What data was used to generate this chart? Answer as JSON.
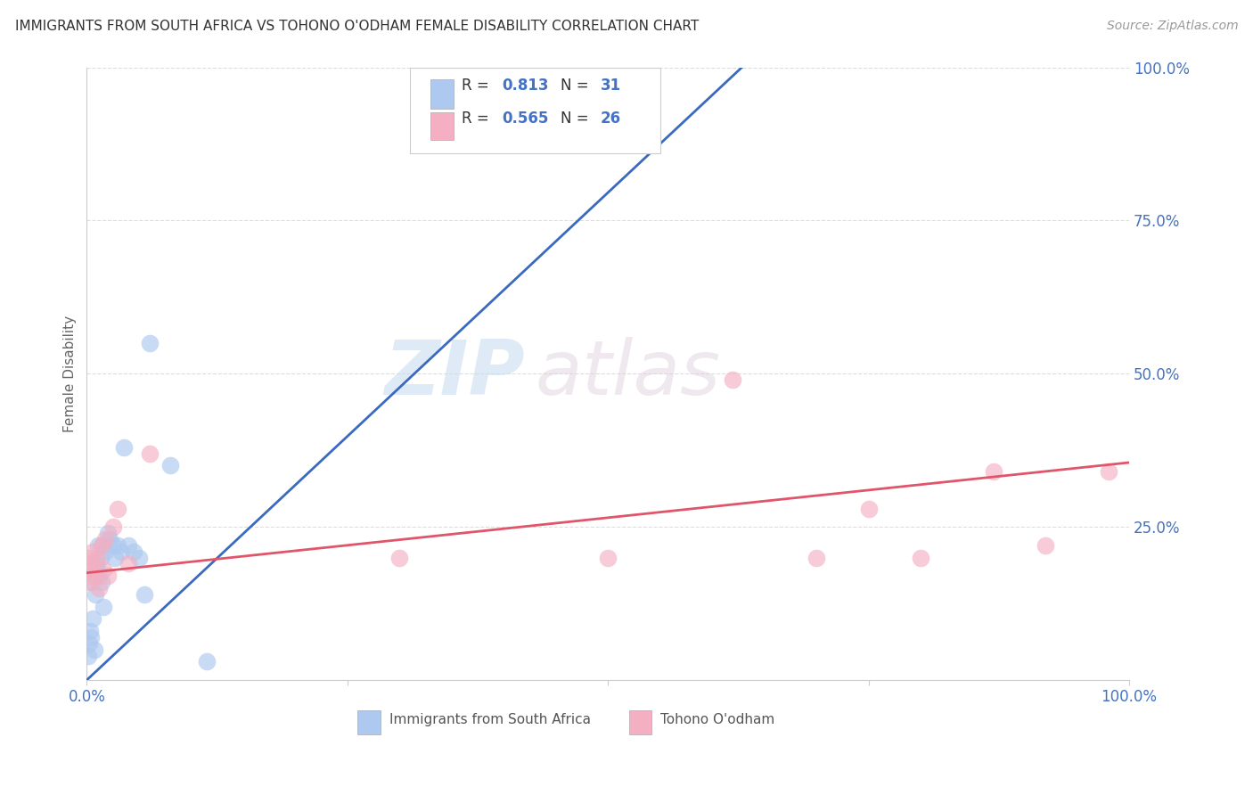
{
  "title": "IMMIGRANTS FROM SOUTH AFRICA VS TOHONO O'ODHAM FEMALE DISABILITY CORRELATION CHART",
  "source": "Source: ZipAtlas.com",
  "ylabel": "Female Disability",
  "blue_R": 0.813,
  "blue_N": 31,
  "pink_R": 0.565,
  "pink_N": 26,
  "blue_color": "#adc9ef",
  "pink_color": "#f4afc2",
  "blue_line_color": "#3a6abf",
  "pink_line_color": "#e0556a",
  "axis_label_color": "#4472c4",
  "blue_scatter_x": [
    0.001,
    0.002,
    0.003,
    0.004,
    0.005,
    0.006,
    0.007,
    0.008,
    0.009,
    0.01,
    0.011,
    0.012,
    0.013,
    0.014,
    0.015,
    0.016,
    0.018,
    0.02,
    0.022,
    0.025,
    0.027,
    0.03,
    0.033,
    0.036,
    0.04,
    0.045,
    0.05,
    0.055,
    0.06,
    0.08,
    0.115
  ],
  "blue_scatter_y": [
    0.04,
    0.06,
    0.08,
    0.07,
    0.16,
    0.1,
    0.05,
    0.14,
    0.19,
    0.18,
    0.22,
    0.17,
    0.2,
    0.16,
    0.22,
    0.12,
    0.21,
    0.24,
    0.23,
    0.22,
    0.2,
    0.22,
    0.21,
    0.38,
    0.22,
    0.21,
    0.2,
    0.14,
    0.55,
    0.35,
    0.03
  ],
  "pink_scatter_x": [
    0.001,
    0.002,
    0.003,
    0.004,
    0.005,
    0.006,
    0.008,
    0.01,
    0.012,
    0.014,
    0.016,
    0.018,
    0.02,
    0.025,
    0.03,
    0.04,
    0.06,
    0.3,
    0.5,
    0.62,
    0.7,
    0.75,
    0.8,
    0.87,
    0.92,
    0.98
  ],
  "pink_scatter_y": [
    0.18,
    0.2,
    0.16,
    0.17,
    0.19,
    0.21,
    0.17,
    0.2,
    0.15,
    0.22,
    0.18,
    0.23,
    0.17,
    0.25,
    0.28,
    0.19,
    0.37,
    0.2,
    0.2,
    0.49,
    0.2,
    0.28,
    0.2,
    0.34,
    0.22,
    0.34
  ],
  "blue_line_x": [
    0.0,
    0.66
  ],
  "blue_line_y": [
    0.0,
    1.05
  ],
  "pink_line_x": [
    0.0,
    1.0
  ],
  "pink_line_y": [
    0.175,
    0.355
  ],
  "watermark_zip": "ZIP",
  "watermark_atlas": "atlas",
  "background_color": "#ffffff",
  "grid_color": "#dddddd",
  "ylim": [
    0,
    1.0
  ],
  "xlim": [
    0,
    1.0
  ]
}
